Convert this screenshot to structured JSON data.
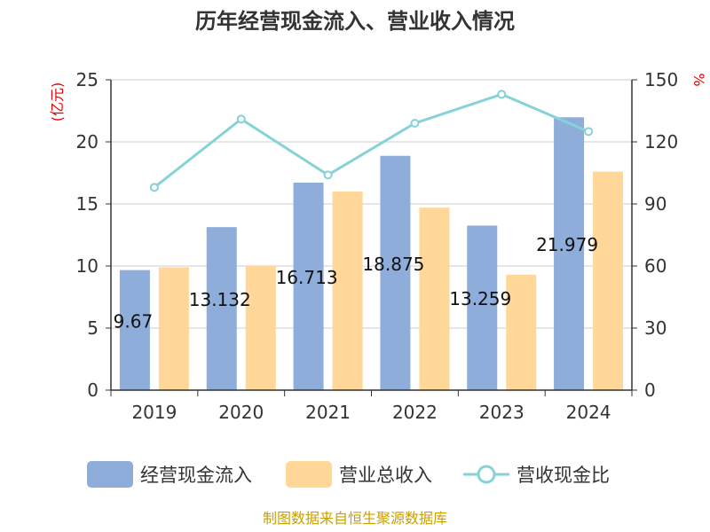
{
  "chart_data": {
    "type": "bar",
    "title": "历年经营现金流入、营业收入情况",
    "categories": [
      "2019",
      "2020",
      "2021",
      "2022",
      "2023",
      "2024"
    ],
    "series": [
      {
        "name": "经营现金流入",
        "type": "bar",
        "axis": "left",
        "color": "#8EADDB",
        "values": [
          9.67,
          13.132,
          16.713,
          18.875,
          13.259,
          21.979
        ],
        "labels": [
          "9.67",
          "13.132",
          "16.713",
          "18.875",
          "13.259",
          "21.979"
        ]
      },
      {
        "name": "营业总收入",
        "type": "bar",
        "axis": "left",
        "color": "#FFD899",
        "values": [
          9.9,
          10.0,
          16.0,
          14.7,
          9.3,
          17.6
        ]
      },
      {
        "name": "营收现金比",
        "type": "line",
        "axis": "right",
        "color": "#85D3D6",
        "values": [
          98,
          131,
          104,
          129,
          143,
          125
        ]
      }
    ],
    "y_left": {
      "unit": "(亿元)",
      "min": 0,
      "max": 25,
      "ticks": [
        "0",
        "5",
        "10",
        "15",
        "20",
        "25"
      ]
    },
    "y_right": {
      "unit": "%",
      "min": 0,
      "max": 150,
      "ticks": [
        "0",
        "30",
        "60",
        "90",
        "120",
        "150"
      ]
    },
    "grid": true,
    "legend_position": "bottom",
    "source": "制图数据来自恒生聚源数据库"
  }
}
